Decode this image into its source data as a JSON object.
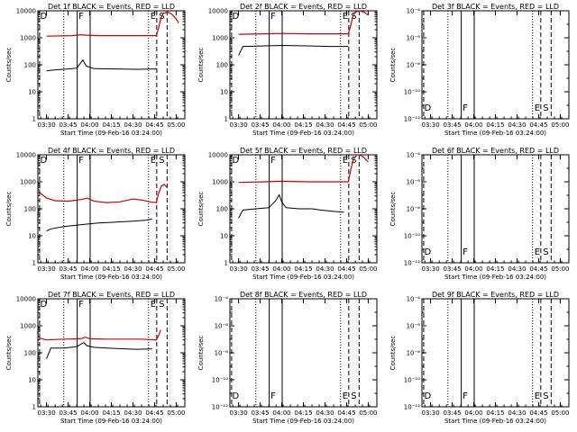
{
  "chart_data": [
    {
      "type": "line",
      "title": "Det 1f BLACK = Events, RED = LLD",
      "xlabel": "Start Time (09-Feb-16 03:24:00)",
      "ylabel": "Counts/sec",
      "yscale": "log",
      "ylim": [
        1,
        10000
      ],
      "yticks": [
        "1",
        "10",
        "100",
        "1000",
        "10000"
      ],
      "xlim": [
        "03:24",
        "05:06"
      ],
      "xticks": [
        "03:30",
        "03:45",
        "04:00",
        "04:15",
        "04:30",
        "04:45",
        "05:00"
      ],
      "markers": [
        "D",
        "F",
        "E",
        "S"
      ],
      "series_colors": {
        "events": "#000000",
        "lld": "#cc0000"
      },
      "series": {
        "events": [
          [
            3.5,
            60
          ],
          [
            3.6,
            65
          ],
          [
            3.75,
            70
          ],
          [
            3.85,
            75
          ],
          [
            3.92,
            150
          ],
          [
            3.96,
            90
          ],
          [
            4.05,
            72
          ],
          [
            4.3,
            70
          ],
          [
            4.55,
            68
          ],
          [
            4.77,
            70
          ]
        ],
        "lld": [
          [
            3.5,
            1150
          ],
          [
            3.8,
            1200
          ],
          [
            3.9,
            1300
          ],
          [
            3.96,
            1250
          ],
          [
            4.1,
            1200
          ],
          [
            4.5,
            1200
          ],
          [
            4.77,
            1200
          ],
          [
            4.8,
            2500
          ],
          [
            4.82,
            5000
          ],
          [
            4.85,
            8000
          ],
          [
            4.9,
            9000
          ],
          [
            4.95,
            7500
          ],
          [
            5.0,
            5000
          ],
          [
            5.03,
            3500
          ]
        ]
      }
    },
    {
      "type": "line",
      "title": "Det 2f BLACK = Events, RED = LLD",
      "xlabel": "Start Time (09-Feb-16 03:24:00)",
      "ylabel": "Counts/sec",
      "yscale": "log",
      "ylim": [
        1,
        10000
      ],
      "yticks": [
        "1",
        "10",
        "100",
        "1000",
        "10000"
      ],
      "xlim": [
        "03:24",
        "05:06"
      ],
      "xticks": [
        "03:30",
        "03:45",
        "04:00",
        "04:15",
        "04:30",
        "04:45",
        "05:00"
      ],
      "markers": [
        "D",
        "F",
        "E",
        "S"
      ],
      "series_colors": {
        "events": "#000000",
        "lld": "#cc0000"
      },
      "series": {
        "events": [
          [
            3.5,
            220
          ],
          [
            3.55,
            480
          ],
          [
            3.8,
            500
          ],
          [
            4.0,
            520
          ],
          [
            4.3,
            500
          ],
          [
            4.55,
            480
          ],
          [
            4.77,
            480
          ]
        ],
        "lld": [
          [
            3.5,
            1350
          ],
          [
            3.8,
            1400
          ],
          [
            4.0,
            1450
          ],
          [
            4.3,
            1400
          ],
          [
            4.6,
            1400
          ],
          [
            4.77,
            1400
          ],
          [
            4.8,
            3000
          ],
          [
            4.82,
            6000
          ],
          [
            4.85,
            9000
          ],
          [
            4.9,
            10000
          ],
          [
            4.95,
            9000
          ],
          [
            5.0,
            7000
          ]
        ]
      }
    },
    {
      "type": "line",
      "title": "Det 3f BLACK = Events, RED = LLD",
      "xlabel": "Start Time (09-Feb-16 03:24:00)",
      "ylabel": "Counts/sec",
      "yscale": "log",
      "ylim": [
        1e-12,
        0.0001
      ],
      "yticks": [
        "10⁻¹²",
        "10⁻¹⁰",
        "10⁻⁸",
        "10⁻⁶",
        "10⁻⁴"
      ],
      "xlim": [
        "03:24",
        "05:06"
      ],
      "xticks": [
        "03:30",
        "03:45",
        "04:00",
        "04:15",
        "04:30",
        "04:45",
        "05:00"
      ],
      "markers": [
        "D",
        "F",
        "E",
        "S"
      ],
      "series_colors": {
        "events": "#000000",
        "lld": "#cc0000"
      },
      "series": {
        "events": [],
        "lld": []
      }
    },
    {
      "type": "line",
      "title": "Det 4f BLACK = Events, RED = LLD",
      "xlabel": "Start Time (09-Feb-16 03:24:00)",
      "ylabel": "Counts/sec",
      "yscale": "log",
      "ylim": [
        1,
        10000
      ],
      "yticks": [
        "1",
        "10",
        "100",
        "1000",
        "10000"
      ],
      "xlim": [
        "03:24",
        "05:06"
      ],
      "xticks": [
        "03:30",
        "03:45",
        "04:00",
        "04:15",
        "04:30",
        "04:45",
        "05:00"
      ],
      "markers": [
        "D",
        "F",
        "E",
        "S"
      ],
      "series_colors": {
        "events": "#000000",
        "lld": "#cc0000"
      },
      "series": {
        "events": [
          [
            3.5,
            15
          ],
          [
            3.55,
            18
          ],
          [
            3.7,
            22
          ],
          [
            3.9,
            26
          ],
          [
            4.1,
            30
          ],
          [
            4.3,
            32
          ],
          [
            4.5,
            35
          ],
          [
            4.65,
            38
          ],
          [
            4.72,
            42
          ]
        ],
        "lld": [
          [
            3.42,
            400
          ],
          [
            3.5,
            250
          ],
          [
            3.6,
            200
          ],
          [
            3.75,
            190
          ],
          [
            3.9,
            220
          ],
          [
            3.97,
            250
          ],
          [
            4.05,
            190
          ],
          [
            4.2,
            170
          ],
          [
            4.35,
            180
          ],
          [
            4.5,
            230
          ],
          [
            4.6,
            210
          ],
          [
            4.7,
            180
          ],
          [
            4.77,
            170
          ],
          [
            4.8,
            400
          ],
          [
            4.83,
            700
          ],
          [
            4.86,
            800
          ],
          [
            4.9,
            600
          ]
        ]
      }
    },
    {
      "type": "line",
      "title": "Det 5f BLACK = Events, RED = LLD",
      "xlabel": "Start Time (09-Feb-16 03:24:00)",
      "ylabel": "Counts/sec",
      "yscale": "log",
      "ylim": [
        1,
        10000
      ],
      "yticks": [
        "1",
        "10",
        "100",
        "1000",
        "10000"
      ],
      "xlim": [
        "03:24",
        "05:06"
      ],
      "xticks": [
        "03:30",
        "03:45",
        "04:00",
        "04:15",
        "04:30",
        "04:45",
        "05:00"
      ],
      "markers": [
        "D",
        "F",
        "E",
        "S"
      ],
      "series_colors": {
        "events": "#000000",
        "lld": "#cc0000"
      },
      "series": {
        "events": [
          [
            3.5,
            45
          ],
          [
            3.55,
            90
          ],
          [
            3.7,
            100
          ],
          [
            3.85,
            110
          ],
          [
            3.93,
            200
          ],
          [
            3.97,
            330
          ],
          [
            4.0,
            180
          ],
          [
            4.05,
            110
          ],
          [
            4.2,
            100
          ],
          [
            4.35,
            100
          ],
          [
            4.45,
            90
          ],
          [
            4.6,
            80
          ],
          [
            4.72,
            75
          ]
        ],
        "lld": [
          [
            3.5,
            950
          ],
          [
            3.8,
            1000
          ],
          [
            4.0,
            1050
          ],
          [
            4.3,
            1000
          ],
          [
            4.6,
            1000
          ],
          [
            4.77,
            1000
          ],
          [
            4.8,
            3000
          ],
          [
            4.83,
            7000
          ],
          [
            4.87,
            10000
          ],
          [
            4.9,
            10000
          ],
          [
            4.95,
            8000
          ],
          [
            5.0,
            5500
          ]
        ]
      }
    },
    {
      "type": "line",
      "title": "Det 6f BLACK = Events, RED = LLD",
      "xlabel": "Start Time (09-Feb-16 03:24:00)",
      "ylabel": "Counts/sec",
      "yscale": "log",
      "ylim": [
        1e-12,
        0.0001
      ],
      "yticks": [
        "10⁻¹²",
        "10⁻¹⁰",
        "10⁻⁸",
        "10⁻⁶",
        "10⁻⁴"
      ],
      "xlim": [
        "03:24",
        "05:06"
      ],
      "xticks": [
        "03:30",
        "03:45",
        "04:00",
        "04:15",
        "04:30",
        "04:45",
        "05:00"
      ],
      "markers": [
        "D",
        "F",
        "E",
        "S"
      ],
      "series_colors": {
        "events": "#000000",
        "lld": "#cc0000"
      },
      "series": {
        "events": [],
        "lld": []
      }
    },
    {
      "type": "line",
      "title": "Det 7f BLACK = Events, RED = LLD",
      "xlabel": "Start Time (09-Feb-16 03:24:00)",
      "ylabel": "Counts/sec",
      "yscale": "log",
      "ylim": [
        1,
        10000
      ],
      "yticks": [
        "1",
        "10",
        "100",
        "1000",
        "10000"
      ],
      "xlim": [
        "03:24",
        "05:06"
      ],
      "xticks": [
        "03:30",
        "03:45",
        "04:00",
        "04:15",
        "04:30",
        "04:45",
        "05:00"
      ],
      "markers": [
        "D",
        "F",
        "E",
        "S"
      ],
      "series_colors": {
        "events": "#000000",
        "lld": "#cc0000"
      },
      "series": {
        "events": [
          [
            3.5,
            60
          ],
          [
            3.55,
            150
          ],
          [
            3.7,
            150
          ],
          [
            3.85,
            170
          ],
          [
            3.93,
            240
          ],
          [
            3.97,
            180
          ],
          [
            4.05,
            160
          ],
          [
            4.2,
            150
          ],
          [
            4.4,
            140
          ],
          [
            4.55,
            135
          ],
          [
            4.72,
            140
          ]
        ],
        "lld": [
          [
            3.42,
            350
          ],
          [
            3.5,
            300
          ],
          [
            3.7,
            320
          ],
          [
            3.9,
            330
          ],
          [
            3.95,
            380
          ],
          [
            4.0,
            330
          ],
          [
            4.2,
            320
          ],
          [
            4.4,
            320
          ],
          [
            4.6,
            320
          ],
          [
            4.77,
            300
          ],
          [
            4.8,
            450
          ],
          [
            4.82,
            700
          ]
        ]
      }
    },
    {
      "type": "line",
      "title": "Det 8f BLACK = Events, RED = LLD",
      "xlabel": "Start Time (09-Feb-16 03:24:00)",
      "ylabel": "Counts/sec",
      "yscale": "log",
      "ylim": [
        1e-12,
        0.0001
      ],
      "yticks": [
        "10⁻¹²",
        "10⁻¹⁰",
        "10⁻⁸",
        "10⁻⁶",
        "10⁻⁴"
      ],
      "xlim": [
        "03:24",
        "05:06"
      ],
      "xticks": [
        "03:30",
        "03:45",
        "04:00",
        "04:15",
        "04:30",
        "04:45",
        "05:00"
      ],
      "markers": [
        "D",
        "F",
        "E",
        "S"
      ],
      "series_colors": {
        "events": "#000000",
        "lld": "#cc0000"
      },
      "series": {
        "events": [],
        "lld": []
      }
    },
    {
      "type": "line",
      "title": "Det 9f BLACK = Events, RED = LLD",
      "xlabel": "Start Time (09-Feb-16 03:24:00)",
      "ylabel": "Counts/sec",
      "yscale": "log",
      "ylim": [
        1e-12,
        0.0001
      ],
      "yticks": [
        "10⁻¹²",
        "10⁻¹⁰",
        "10⁻⁸",
        "10⁻⁶",
        "10⁻⁴"
      ],
      "xlim": [
        "03:24",
        "05:06"
      ],
      "xticks": [
        "03:30",
        "03:45",
        "04:00",
        "04:15",
        "04:30",
        "04:45",
        "05:00"
      ],
      "markers": [
        "D",
        "F",
        "E",
        "S"
      ],
      "series_colors": {
        "events": "#000000",
        "lld": "#cc0000"
      },
      "series": {
        "events": [],
        "lld": []
      }
    }
  ]
}
